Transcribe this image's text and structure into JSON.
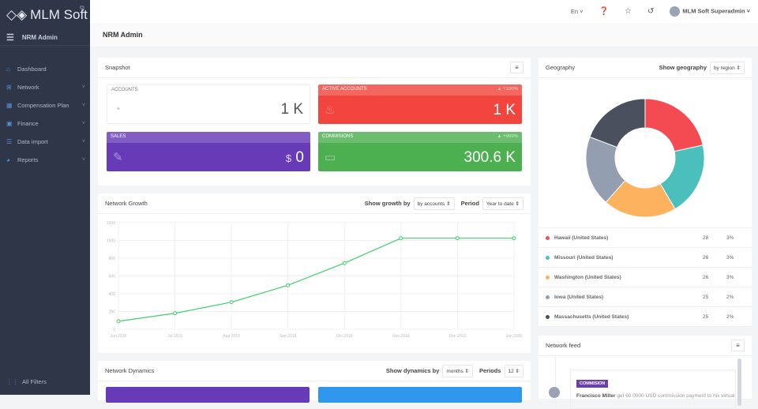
{
  "sidebar": {
    "logo": "MLM Soft",
    "title": "NRM Admin",
    "items": [
      {
        "label": "Dashboard",
        "icon": "home-icon",
        "chev": false
      },
      {
        "label": "Network",
        "icon": "sitemap-icon",
        "chev": true
      },
      {
        "label": "Compensation Plan",
        "icon": "calculator-icon",
        "chev": true
      },
      {
        "label": "Finance",
        "icon": "finance-icon",
        "chev": true
      },
      {
        "label": "Data import",
        "icon": "list-icon",
        "chev": true
      },
      {
        "label": "Reports",
        "icon": "pie-chart-icon",
        "chev": true
      }
    ],
    "all_filters": "All Filters"
  },
  "topbar": {
    "lang": "En",
    "user": "MLM Soft Superadmin"
  },
  "page_title": "NRM Admin",
  "snapshot": {
    "title": "Snapshot",
    "tiles": [
      {
        "label": "ACCOUNTS",
        "value": "1 K",
        "change": "",
        "color": "#ffffff"
      },
      {
        "label": "ACTIVE ACCOUNTS",
        "value": "1 K",
        "change": "▲ +100%",
        "color": "#f2453d"
      },
      {
        "label": "SALES",
        "value": "0",
        "prefix": "$",
        "change": "",
        "color": "#673ab7"
      },
      {
        "label": "COMMISIONS",
        "value": "300.6 K",
        "change": "▲ +989%",
        "color": "#4caf50"
      }
    ]
  },
  "growth": {
    "title": "Network Growth",
    "show_label": "Show growth by",
    "show_value": "by accounts",
    "period_label": "Period",
    "period_value": "Year to date"
  },
  "chart_data": {
    "type": "line",
    "x": [
      "Jun 2019",
      "Jul 2019",
      "Aug 2019",
      "Sep 2019",
      "Oct 2019",
      "Nov 2019",
      "Dec 2019",
      "Jan 2020"
    ],
    "values": [
      90,
      180,
      305,
      495,
      745,
      1025,
      1025,
      1025
    ],
    "ylim": [
      0,
      1200
    ],
    "yticks": [
      0,
      200,
      400,
      600,
      800,
      1000,
      1200
    ],
    "grid": true,
    "color": "#3ecf6b"
  },
  "dynamics": {
    "title": "Network Dynamics",
    "show_label": "Show dynamics by",
    "show_value": "months",
    "periods_label": "Periods",
    "periods_value": "12"
  },
  "geography": {
    "title": "Geography",
    "show_label": "Show geography",
    "show_value": "by region",
    "rows": [
      {
        "name": "Hawaii (United States)",
        "count": 28,
        "pct": "3%",
        "color": "#f44a52"
      },
      {
        "name": "Missouri (United States)",
        "count": 26,
        "pct": "3%",
        "color": "#4bbfbc"
      },
      {
        "name": "Washington (United States)",
        "count": 26,
        "pct": "3%",
        "color": "#fcb25e"
      },
      {
        "name": "Iowa (United States)",
        "count": 25,
        "pct": "2%",
        "color": "#939eb0"
      },
      {
        "name": "Massachusetts (United States)",
        "count": 25,
        "pct": "2%",
        "color": "#4a505e"
      }
    ]
  },
  "feed": {
    "title": "Network feed",
    "badge": "COMMISION",
    "name": "Francisco Miller",
    "text": "get 60.0000 USD commission payment to his virtual"
  }
}
